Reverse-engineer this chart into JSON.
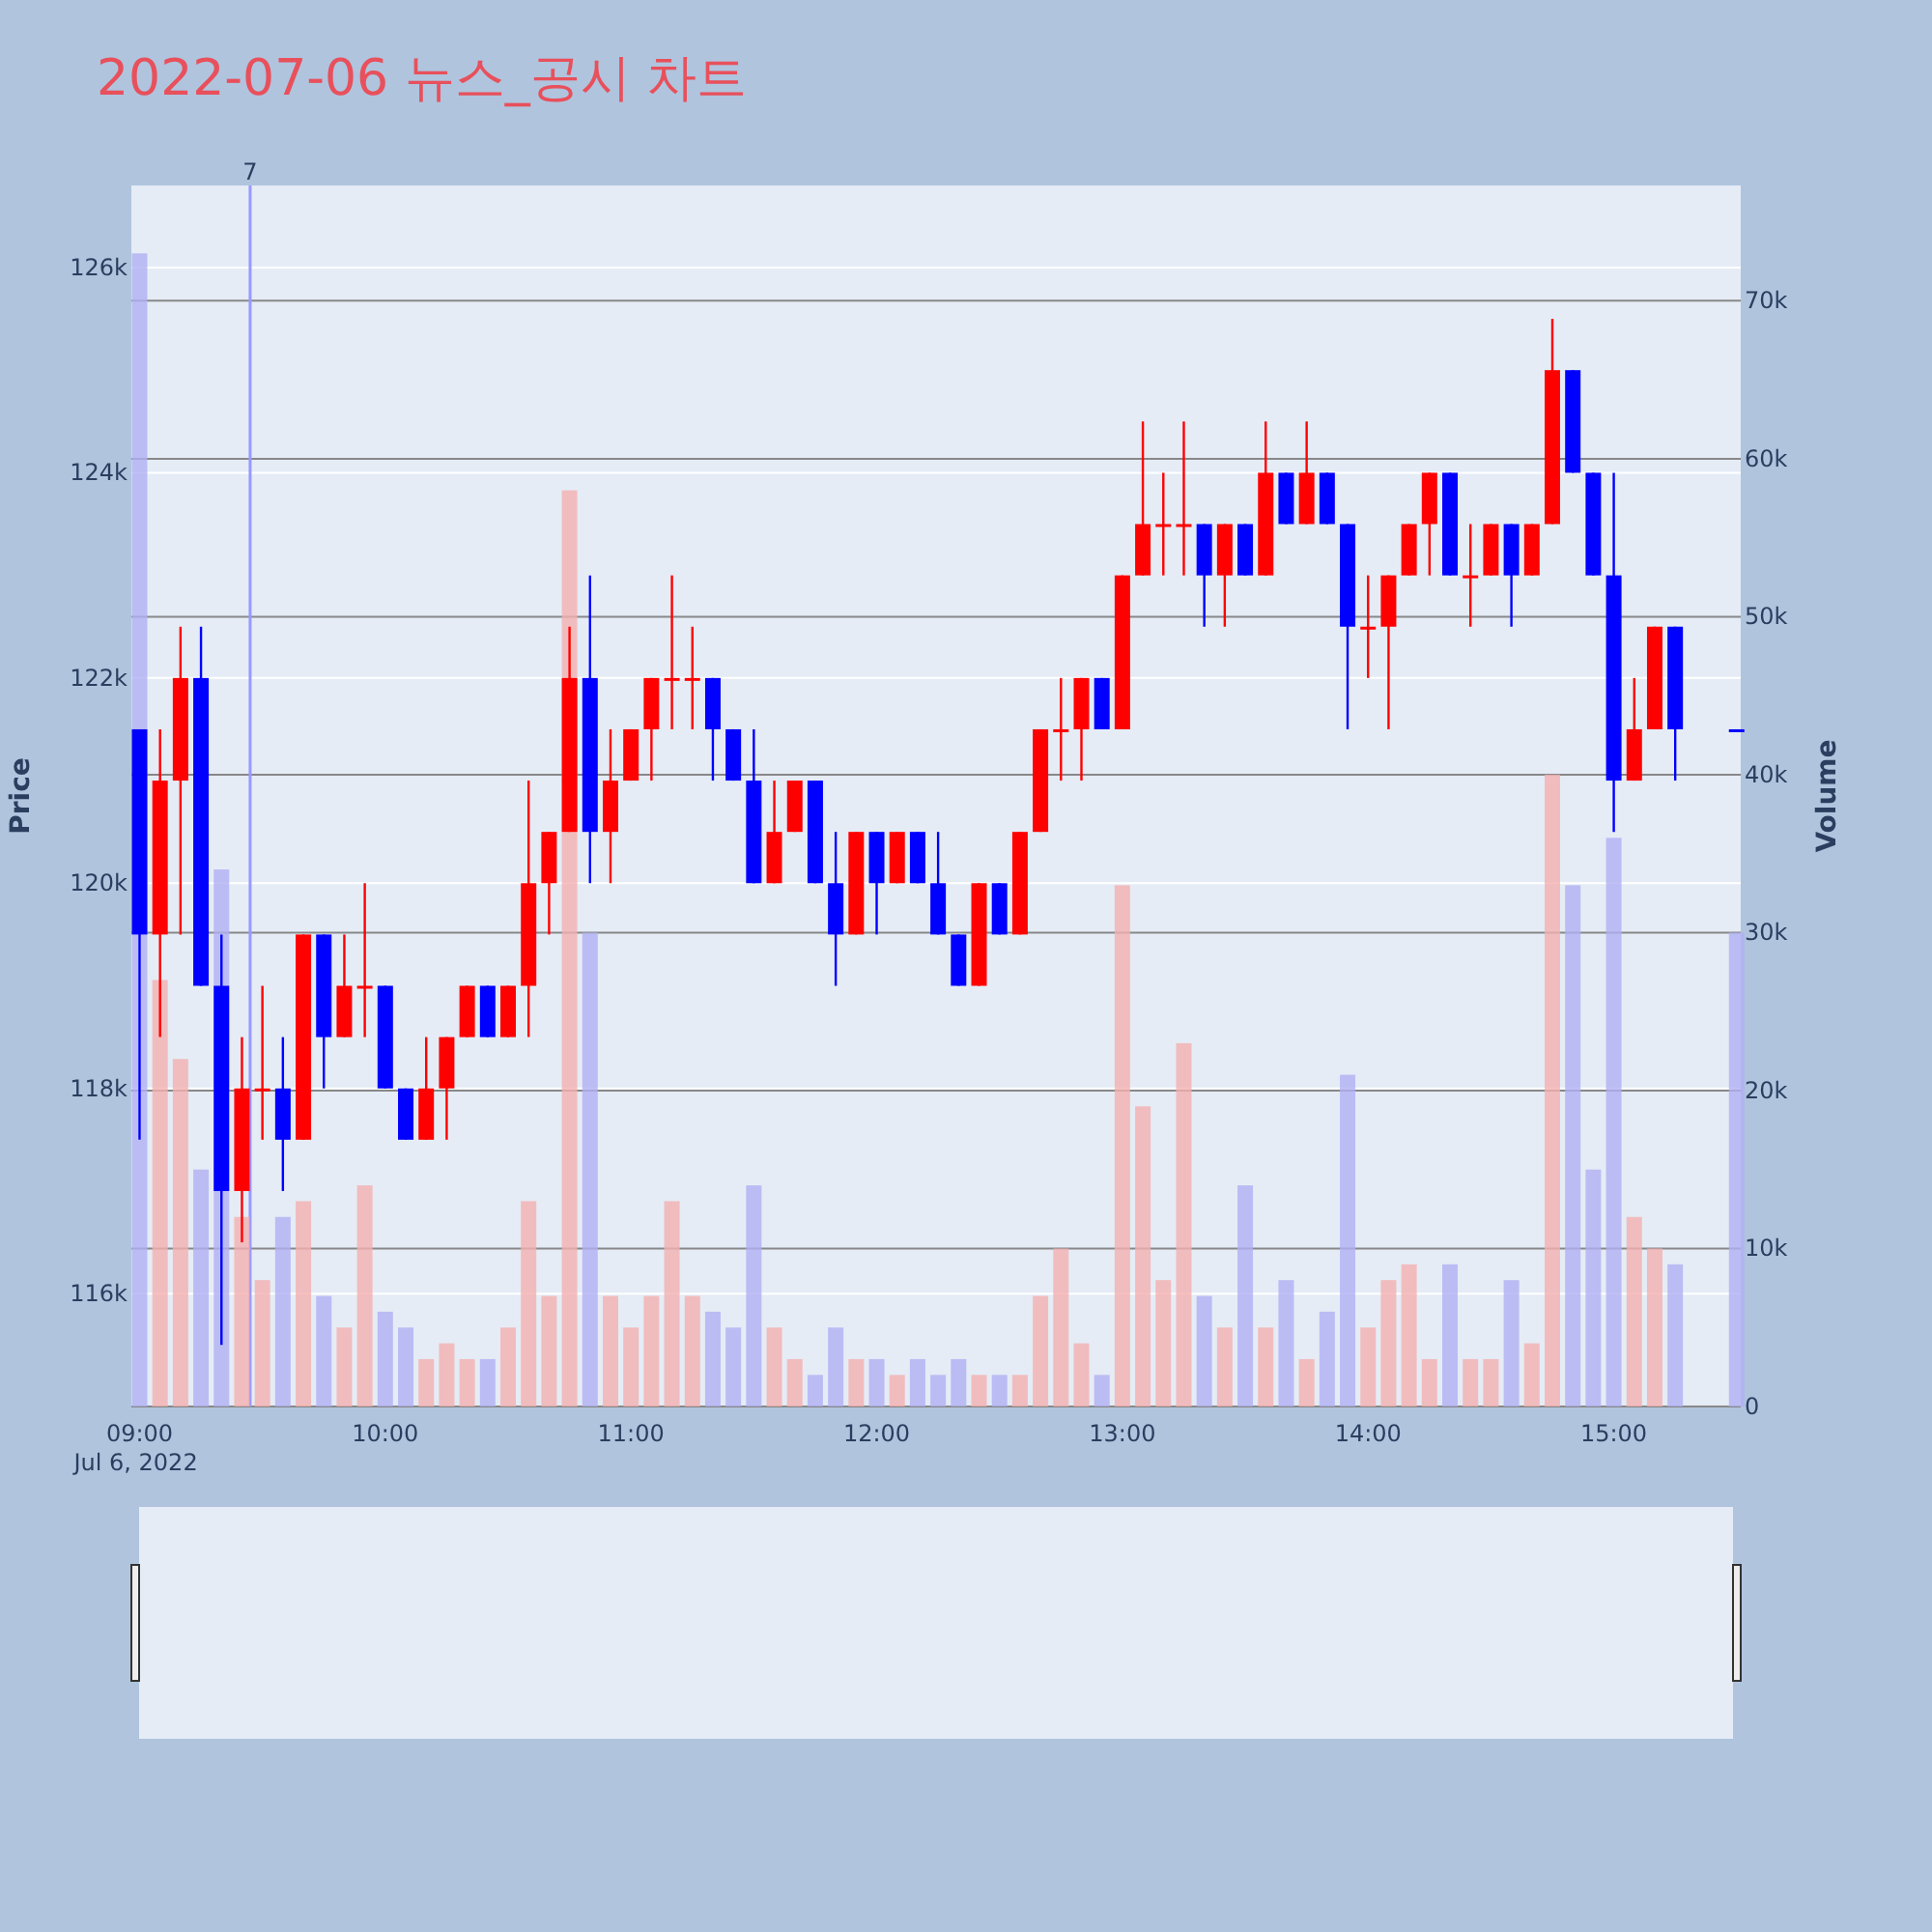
{
  "chart_data": {
    "type": "candlestick",
    "title": "2022-07-06 뉴스_공시 차트",
    "ylabel": "Price",
    "y2label": "Volume",
    "x": [
      "2022-07-06T09:00",
      "2022-07-06T09:05",
      "2022-07-06T09:10",
      "2022-07-06T09:15",
      "2022-07-06T09:20",
      "2022-07-06T09:25",
      "2022-07-06T09:30",
      "2022-07-06T09:35",
      "2022-07-06T09:40",
      "2022-07-06T09:45",
      "2022-07-06T09:50",
      "2022-07-06T09:55",
      "2022-07-06T10:00",
      "2022-07-06T10:05",
      "2022-07-06T10:10",
      "2022-07-06T10:15",
      "2022-07-06T10:20",
      "2022-07-06T10:25",
      "2022-07-06T10:30",
      "2022-07-06T10:35",
      "2022-07-06T10:40",
      "2022-07-06T10:45",
      "2022-07-06T10:50",
      "2022-07-06T10:55",
      "2022-07-06T11:00",
      "2022-07-06T11:05",
      "2022-07-06T11:10",
      "2022-07-06T11:15",
      "2022-07-06T11:20",
      "2022-07-06T11:25",
      "2022-07-06T11:30",
      "2022-07-06T11:35",
      "2022-07-06T11:40",
      "2022-07-06T11:45",
      "2022-07-06T11:50",
      "2022-07-06T11:55",
      "2022-07-06T12:00",
      "2022-07-06T12:05",
      "2022-07-06T12:10",
      "2022-07-06T12:15",
      "2022-07-06T12:20",
      "2022-07-06T12:25",
      "2022-07-06T12:30",
      "2022-07-06T12:35",
      "2022-07-06T12:40",
      "2022-07-06T12:45",
      "2022-07-06T12:50",
      "2022-07-06T12:55",
      "2022-07-06T13:00",
      "2022-07-06T13:05",
      "2022-07-06T13:10",
      "2022-07-06T13:15",
      "2022-07-06T13:20",
      "2022-07-06T13:25",
      "2022-07-06T13:30",
      "2022-07-06T13:35",
      "2022-07-06T13:40",
      "2022-07-06T13:45",
      "2022-07-06T13:50",
      "2022-07-06T13:55",
      "2022-07-06T14:00",
      "2022-07-06T14:05",
      "2022-07-06T14:10",
      "2022-07-06T14:15",
      "2022-07-06T14:20",
      "2022-07-06T14:25",
      "2022-07-06T14:30",
      "2022-07-06T14:35",
      "2022-07-06T14:40",
      "2022-07-06T14:45",
      "2022-07-06T14:50",
      "2022-07-06T14:55",
      "2022-07-06T15:00",
      "2022-07-06T15:05",
      "2022-07-06T15:10",
      "2022-07-06T15:15",
      "2022-07-06T15:30"
    ],
    "series": [
      {
        "colors": [
          "#0000ff",
          "#ff0000",
          "#ff0000",
          "#0000ff",
          "#0000ff",
          "#ff0000",
          "#ff0000",
          "#0000ff",
          "#ff0000",
          "#0000ff",
          "#ff0000",
          "#ff0000",
          "#0000ff",
          "#0000ff",
          "#ff0000",
          "#ff0000",
          "#ff0000",
          "#0000ff",
          "#ff0000",
          "#ff0000",
          "#ff0000",
          "#ff0000",
          "#0000ff",
          "#ff0000",
          "#ff0000",
          "#ff0000",
          "#ff0000",
          "#ff0000",
          "#0000ff",
          "#0000ff",
          "#0000ff",
          "#ff0000",
          "#ff0000",
          "#0000ff",
          "#0000ff",
          "#ff0000",
          "#0000ff",
          "#ff0000",
          "#0000ff",
          "#0000ff",
          "#0000ff",
          "#ff0000",
          "#0000ff",
          "#ff0000",
          "#ff0000",
          "#ff0000",
          "#ff0000",
          "#0000ff",
          "#ff0000",
          "#ff0000",
          "#ff0000",
          "#ff0000",
          "#0000ff",
          "#ff0000",
          "#0000ff",
          "#ff0000",
          "#0000ff",
          "#ff0000",
          "#0000ff",
          "#0000ff",
          "#ff0000",
          "#ff0000",
          "#ff0000",
          "#ff0000",
          "#0000ff",
          "#ff0000",
          "#ff0000",
          "#0000ff",
          "#ff0000",
          "#ff0000",
          "#0000ff",
          "#0000ff",
          "#0000ff",
          "#ff0000",
          "#ff0000",
          "#0000ff",
          "#0000ff"
        ],
        "ohlc": [
          [
            121.5,
            121.5,
            117.5,
            119.5
          ],
          [
            119.5,
            121.5,
            118.5,
            121
          ],
          [
            121,
            122.5,
            119.5,
            122
          ],
          [
            122,
            122.5,
            119,
            119
          ],
          [
            119,
            119.5,
            115.5,
            117
          ],
          [
            117,
            118.5,
            116.5,
            118
          ],
          [
            118,
            119,
            117.5,
            118
          ],
          [
            118,
            118.5,
            117,
            117.5
          ],
          [
            117.5,
            119.5,
            117.5,
            119.5
          ],
          [
            119.5,
            119.5,
            118,
            118.5
          ],
          [
            118.5,
            119.5,
            118.5,
            119
          ],
          [
            119,
            120,
            118.5,
            119
          ],
          [
            119,
            119,
            118,
            118
          ],
          [
            118,
            118,
            117.5,
            117.5
          ],
          [
            117.5,
            118.5,
            117.5,
            118
          ],
          [
            118,
            118.5,
            117.5,
            118.5
          ],
          [
            118.5,
            119,
            118.5,
            119
          ],
          [
            119,
            119,
            118.5,
            118.5
          ],
          [
            118.5,
            119,
            118.5,
            119
          ],
          [
            119,
            121,
            118.5,
            120
          ],
          [
            120,
            120.5,
            119.5,
            120.5
          ],
          [
            120.5,
            122.5,
            120.5,
            122
          ],
          [
            122,
            123,
            120,
            120.5
          ],
          [
            120.5,
            121.5,
            120,
            121
          ],
          [
            121,
            121.5,
            121,
            121.5
          ],
          [
            121.5,
            122,
            121,
            122
          ],
          [
            122,
            123,
            121.5,
            122
          ],
          [
            122,
            122.5,
            121.5,
            122
          ],
          [
            122,
            122,
            121,
            121.5
          ],
          [
            121.5,
            121.5,
            121,
            121
          ],
          [
            121,
            121.5,
            120,
            120
          ],
          [
            120,
            121,
            120,
            120.5
          ],
          [
            120.5,
            121,
            120.5,
            121
          ],
          [
            121,
            121,
            120,
            120
          ],
          [
            120,
            120.5,
            119,
            119.5
          ],
          [
            119.5,
            120.5,
            119.5,
            120.5
          ],
          [
            120.5,
            120.5,
            119.5,
            120
          ],
          [
            120,
            120.5,
            120,
            120.5
          ],
          [
            120.5,
            120.5,
            120,
            120
          ],
          [
            120,
            120.5,
            119.5,
            119.5
          ],
          [
            119.5,
            119.5,
            119,
            119
          ],
          [
            119,
            120,
            119,
            120
          ],
          [
            120,
            120,
            119.5,
            119.5
          ],
          [
            119.5,
            120.5,
            119.5,
            120.5
          ],
          [
            120.5,
            121.5,
            120.5,
            121.5
          ],
          [
            121.5,
            122,
            121,
            121.5
          ],
          [
            121.5,
            122,
            121,
            122
          ],
          [
            122,
            122,
            121.5,
            121.5
          ],
          [
            121.5,
            123,
            121.5,
            123
          ],
          [
            123,
            124.5,
            123,
            123.5
          ],
          [
            123.5,
            124,
            123,
            123.5
          ],
          [
            123.5,
            124.5,
            123,
            123.5
          ],
          [
            123.5,
            123.5,
            122.5,
            123
          ],
          [
            123,
            123.5,
            122.5,
            123.5
          ],
          [
            123.5,
            123.5,
            123,
            123
          ],
          [
            123,
            124.5,
            123,
            124
          ],
          [
            124,
            124,
            123.5,
            123.5
          ],
          [
            123.5,
            124.5,
            123.5,
            124
          ],
          [
            124,
            124,
            123.5,
            123.5
          ],
          [
            123.5,
            123.5,
            121.5,
            122.5
          ],
          [
            122.5,
            123,
            122,
            122.5
          ],
          [
            122.5,
            123,
            121.5,
            123
          ],
          [
            123,
            123.5,
            123,
            123.5
          ],
          [
            123.5,
            124,
            123,
            124
          ],
          [
            124,
            124,
            123,
            123
          ],
          [
            123,
            123.5,
            122.5,
            123
          ],
          [
            123,
            123.5,
            123,
            123.5
          ],
          [
            123.5,
            123.5,
            122.5,
            123
          ],
          [
            123,
            123.5,
            123,
            123.5
          ],
          [
            123.5,
            125.5,
            123.5,
            125
          ],
          [
            125,
            125,
            124,
            124
          ],
          [
            124,
            124,
            123,
            123
          ],
          [
            123,
            124,
            120.5,
            121
          ],
          [
            121,
            122,
            121,
            121.5
          ],
          [
            121.5,
            122.5,
            121.5,
            122.5
          ],
          [
            122.5,
            122.5,
            121,
            121.5
          ],
          [
            121.5,
            121.5,
            121.5,
            121.5
          ]
        ]
      },
      {
        "type": "bar",
        "axis": "y2",
        "colors": [
          "#b0b0f4",
          "#f4b0b0",
          "#f4b0b0",
          "#b0b0f4",
          "#b0b0f4",
          "#f4b0b0",
          "#f4b0b0",
          "#b0b0f4",
          "#f4b0b0",
          "#b0b0f4",
          "#f4b0b0",
          "#f4b0b0",
          "#b0b0f4",
          "#b0b0f4",
          "#f4b0b0",
          "#f4b0b0",
          "#f4b0b0",
          "#b0b0f4",
          "#f4b0b0",
          "#f4b0b0",
          "#f4b0b0",
          "#f4b0b0",
          "#b0b0f4",
          "#f4b0b0",
          "#f4b0b0",
          "#f4b0b0",
          "#f4b0b0",
          "#f4b0b0",
          "#b0b0f4",
          "#b0b0f4",
          "#b0b0f4",
          "#f4b0b0",
          "#f4b0b0",
          "#b0b0f4",
          "#b0b0f4",
          "#f4b0b0",
          "#b0b0f4",
          "#f4b0b0",
          "#b0b0f4",
          "#b0b0f4",
          "#b0b0f4",
          "#f4b0b0",
          "#b0b0f4",
          "#f4b0b0",
          "#f4b0b0",
          "#f4b0b0",
          "#f4b0b0",
          "#b0b0f4",
          "#f4b0b0",
          "#f4b0b0",
          "#f4b0b0",
          "#f4b0b0",
          "#b0b0f4",
          "#f4b0b0",
          "#b0b0f4",
          "#f4b0b0",
          "#b0b0f4",
          "#f4b0b0",
          "#b0b0f4",
          "#b0b0f4",
          "#f4b0b0",
          "#f4b0b0",
          "#f4b0b0",
          "#f4b0b0",
          "#b0b0f4",
          "#f4b0b0",
          "#f4b0b0",
          "#b0b0f4",
          "#f4b0b0",
          "#f4b0b0",
          "#b0b0f4",
          "#b0b0f4",
          "#b0b0f4",
          "#f4b0b0",
          "#f4b0b0",
          "#b0b0f4",
          "#b0b0f4"
        ],
        "values": [
          73,
          27,
          22,
          15,
          34,
          12,
          8,
          12,
          13,
          7,
          5,
          14,
          6,
          5,
          3,
          4,
          3,
          3,
          5,
          13,
          7,
          58,
          30,
          7,
          5,
          7,
          13,
          7,
          6,
          5,
          14,
          5,
          3,
          2,
          5,
          3,
          3,
          2,
          3,
          2,
          3,
          2,
          2,
          2,
          7,
          10,
          4,
          2,
          33,
          19,
          8,
          23,
          7,
          5,
          14,
          5,
          8,
          3,
          6,
          21,
          5,
          8,
          9,
          3,
          9,
          3,
          3,
          8,
          4,
          40,
          33,
          15,
          36,
          12,
          10,
          9,
          30
        ]
      }
    ],
    "xlim": [
      "2022-07-06T08:58",
      "2022-07-06T15:31"
    ],
    "xticks": [
      {
        "value": "2022-07-06T09:00",
        "label": "09:00\nJul 6, 2022"
      },
      {
        "value": "2022-07-06T10:00",
        "label": "10:00"
      },
      {
        "value": "2022-07-06T11:00",
        "label": "11:00"
      },
      {
        "value": "2022-07-06T12:00",
        "label": "12:00"
      },
      {
        "value": "2022-07-06T13:00",
        "label": "13:00"
      },
      {
        "value": "2022-07-06T14:00",
        "label": "14:00"
      },
      {
        "value": "2022-07-06T15:00",
        "label": "15:00"
      }
    ],
    "ylim": [
      114.9,
      126.8
    ],
    "yticks": [
      {
        "value": 116,
        "label": "116k"
      },
      {
        "value": 118,
        "label": "118k"
      },
      {
        "value": 120,
        "label": "120k"
      },
      {
        "value": 122,
        "label": "122k"
      },
      {
        "value": 124,
        "label": "124k"
      },
      {
        "value": 126,
        "label": "126k"
      }
    ],
    "y2lim": [
      0,
      77.3
    ],
    "y2ticks": [
      {
        "value": 0,
        "label": "0"
      },
      {
        "value": 10,
        "label": "10k"
      },
      {
        "value": 20,
        "label": "20k"
      },
      {
        "value": 30,
        "label": "30k"
      },
      {
        "value": 40,
        "label": "40k"
      },
      {
        "value": 50,
        "label": "50k"
      },
      {
        "value": 60,
        "label": "60k"
      },
      {
        "value": 70,
        "label": "70k"
      }
    ],
    "grid": "y",
    "ref_lines": [
      {
        "axis": "x",
        "value": "2022-07-06T09:27",
        "label": "7",
        "color": "#9999ff"
      }
    ]
  }
}
